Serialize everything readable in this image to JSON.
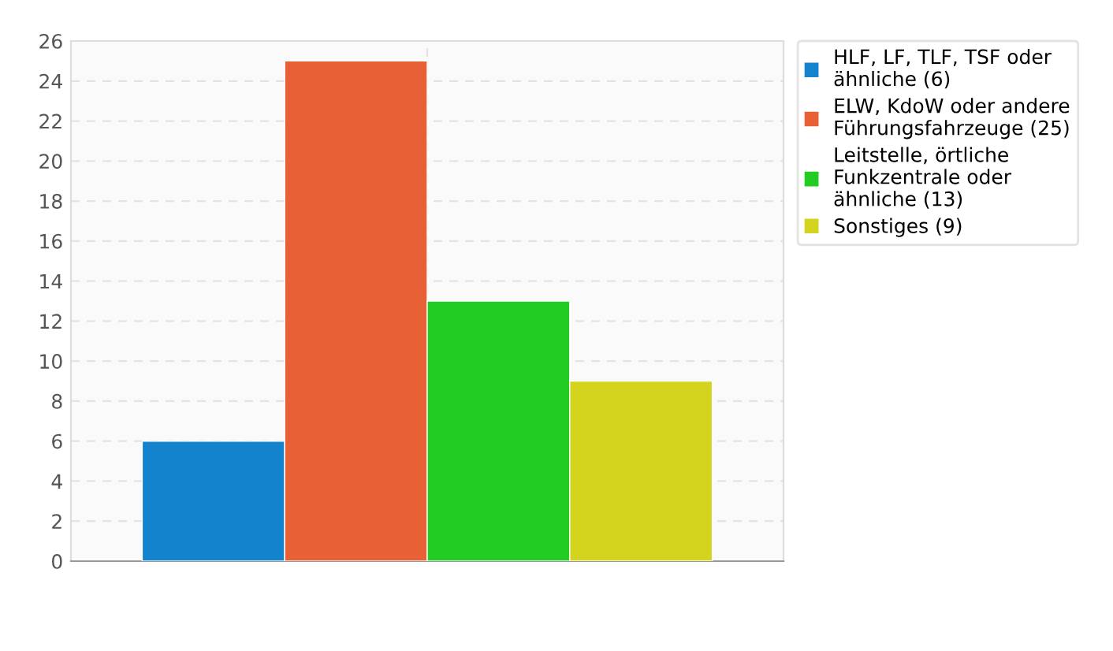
{
  "chart_data": {
    "type": "bar",
    "categories": [
      null
    ],
    "series": [
      {
        "name": "HLF, LF, TLF, TSF oder\nähnliche (6)",
        "color": "#1283cc",
        "values": [
          6
        ]
      },
      {
        "name": "ELW, KdoW oder andere\nFührungsfahrzeuge (25)",
        "color": "#e86035",
        "values": [
          25
        ]
      },
      {
        "name": "Leitstelle, örtliche\nFunkzentrale oder\nähnliche (13)",
        "color": "#22cc22",
        "values": [
          13
        ]
      },
      {
        "name": "Sonstiges (9)",
        "color": "#d4d41e",
        "values": [
          9
        ]
      }
    ],
    "ylim": [
      0,
      26
    ],
    "yticks": [
      0,
      2,
      4,
      6,
      8,
      10,
      12,
      14,
      16,
      18,
      20,
      22,
      24,
      26
    ],
    "grid": true,
    "legend": "top right"
  }
}
